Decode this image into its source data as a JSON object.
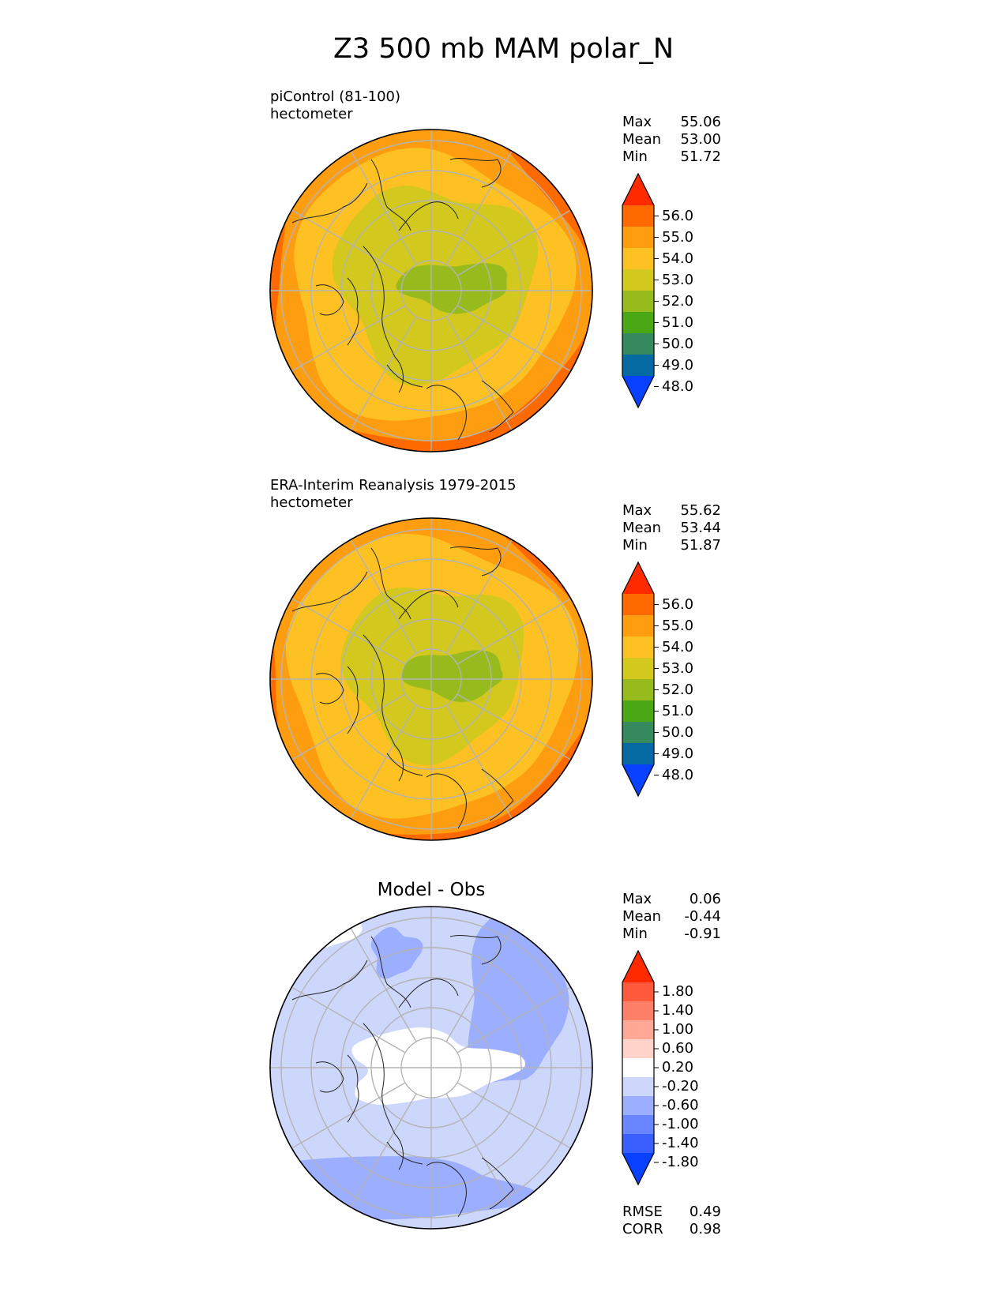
{
  "title": "Z3 500 mb MAM polar_N",
  "panels": [
    {
      "label_lines": [
        "piControl (81-100)",
        "hectometer"
      ],
      "heading": "",
      "stats": [
        {
          "name": "Max",
          "value": "55.06"
        },
        {
          "name": "Mean",
          "value": "53.00"
        },
        {
          "name": "Min",
          "value": "51.72"
        }
      ],
      "colorbar": {
        "ticks": [
          "56.0",
          "55.0",
          "54.0",
          "53.0",
          "52.0",
          "51.0",
          "50.0",
          "49.0",
          "48.0"
        ],
        "colors": [
          "#ff2a00",
          "#ff6a00",
          "#ff9d10",
          "#fdc124",
          "#d2c81e",
          "#97bb1c",
          "#4aa816",
          "#368a5e",
          "#056aa1",
          "#0841ff"
        ]
      },
      "field": "model"
    },
    {
      "label_lines": [
        "ERA-Interim Reanalysis 1979-2015",
        "hectometer"
      ],
      "heading": "",
      "stats": [
        {
          "name": "Max",
          "value": "55.62"
        },
        {
          "name": "Mean",
          "value": "53.44"
        },
        {
          "name": "Min",
          "value": "51.87"
        }
      ],
      "colorbar": {
        "ticks": [
          "56.0",
          "55.0",
          "54.0",
          "53.0",
          "52.0",
          "51.0",
          "50.0",
          "49.0",
          "48.0"
        ],
        "colors": [
          "#ff2a00",
          "#ff6a00",
          "#ff9d10",
          "#fdc124",
          "#d2c81e",
          "#97bb1c",
          "#4aa816",
          "#368a5e",
          "#056aa1",
          "#0841ff"
        ]
      },
      "field": "obs"
    },
    {
      "label_lines": [],
      "heading": "Model - Obs",
      "stats": [
        {
          "name": "Max",
          "value": "0.06"
        },
        {
          "name": "Mean",
          "value": "-0.44"
        },
        {
          "name": "Min",
          "value": "-0.91"
        }
      ],
      "colorbar": {
        "ticks": [
          "1.80",
          "1.40",
          "1.00",
          "0.60",
          "0.20",
          "-0.20",
          "-0.60",
          "-1.00",
          "-1.40",
          "-1.80"
        ],
        "colors": [
          "#ff2a00",
          "#ff5a3c",
          "#ff8068",
          "#ffa896",
          "#ffd2ca",
          "#ffffff",
          "#cdd6fb",
          "#9caeff",
          "#6a86ff",
          "#3960ff",
          "#0841ff"
        ]
      },
      "field": "diff",
      "extra_stats": [
        {
          "name": "RMSE",
          "value": "0.49"
        },
        {
          "name": "CORR",
          "value": "0.98"
        }
      ]
    }
  ]
}
